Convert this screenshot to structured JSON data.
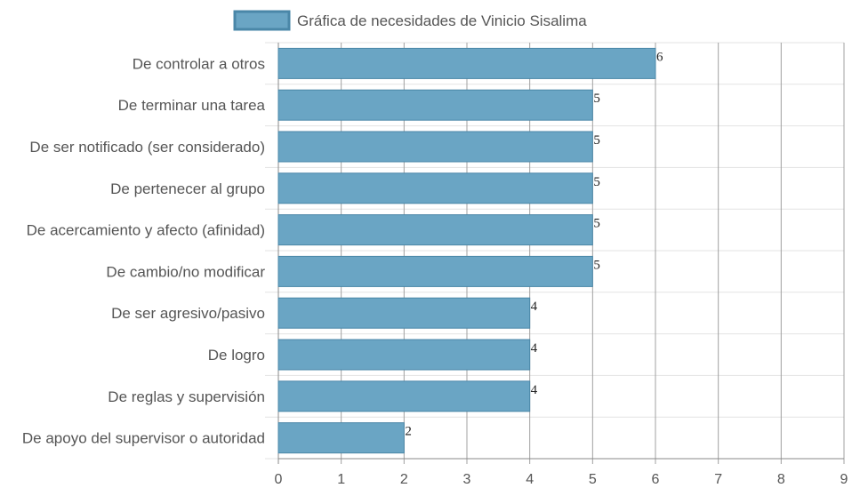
{
  "chart_data": {
    "type": "bar",
    "orientation": "horizontal",
    "categories": [
      "De controlar a otros",
      "De terminar una tarea",
      "De ser notificado (ser considerado)",
      "De pertenecer al grupo",
      "De acercamiento y afecto (afinidad)",
      "De cambio/no modificar",
      "De ser agresivo/pasivo",
      "De logro",
      "De reglas y supervisión",
      "De apoyo del supervisor o autoridad"
    ],
    "series": [
      {
        "name": "Gráfica de necesidades de Vinicio Sisalima",
        "values": [
          6,
          5,
          5,
          5,
          5,
          5,
          4,
          4,
          4,
          2
        ],
        "color": "#6aa5c4",
        "border_color": "#4a87a8"
      }
    ],
    "xlim": [
      0,
      9
    ],
    "x_ticks": [
      0,
      1,
      2,
      3,
      4,
      5,
      6,
      7,
      8,
      9
    ],
    "grid": true,
    "legend_position": "top",
    "data_labels": true
  }
}
